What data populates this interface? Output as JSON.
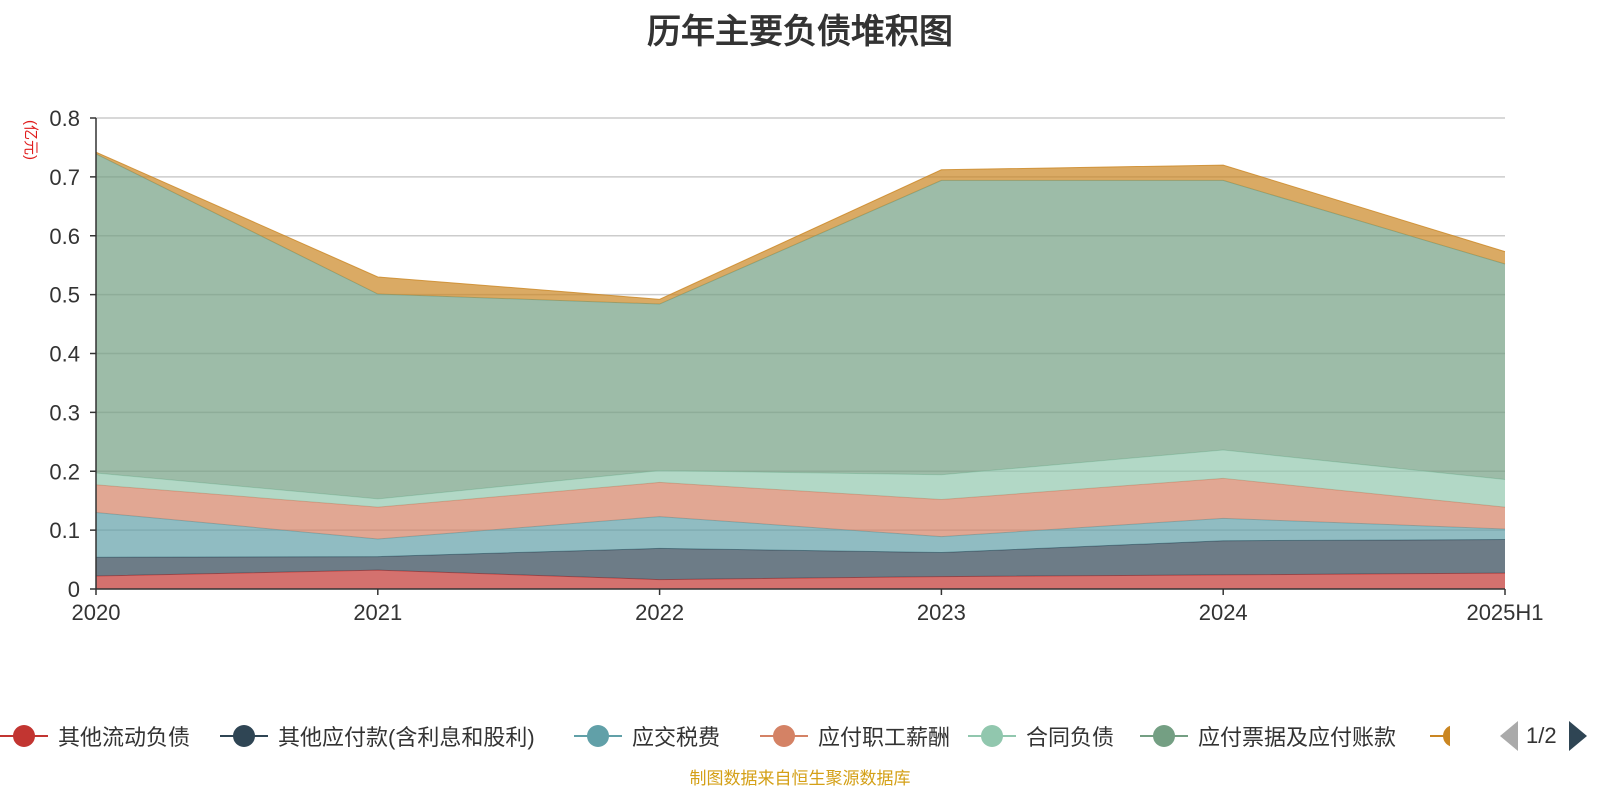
{
  "chart_data": {
    "type": "area",
    "stacked": true,
    "title": "历年主要负债堆积图",
    "unit_label": "(亿元)",
    "categories": [
      "2020",
      "2021",
      "2022",
      "2023",
      "2024",
      "2025H1"
    ],
    "ylim": [
      0,
      0.8
    ],
    "yticks": [
      "0",
      "0.1",
      "0.2",
      "0.3",
      "0.4",
      "0.5",
      "0.6",
      "0.7",
      "0.8"
    ],
    "grid": true,
    "legend_position": "bottom",
    "series": [
      {
        "name": "其他流动负债",
        "color": "#c23531",
        "values": [
          0.022,
          0.032,
          0.016,
          0.021,
          0.024,
          0.027
        ]
      },
      {
        "name": "其他应付款(含利息和股利)",
        "color": "#2f4554",
        "values": [
          0.032,
          0.023,
          0.053,
          0.041,
          0.058,
          0.057
        ]
      },
      {
        "name": "应交税费",
        "color": "#61a0a8",
        "values": [
          0.076,
          0.03,
          0.054,
          0.027,
          0.038,
          0.018
        ]
      },
      {
        "name": "应付职工薪酬",
        "color": "#d48265",
        "values": [
          0.047,
          0.054,
          0.058,
          0.063,
          0.068,
          0.037
        ]
      },
      {
        "name": "合同负债",
        "color": "#91c7ae",
        "values": [
          0.02,
          0.014,
          0.02,
          0.042,
          0.048,
          0.047
        ]
      },
      {
        "name": "应付票据及应付账款",
        "color": "#749f83",
        "values": [
          0.542,
          0.348,
          0.283,
          0.5,
          0.458,
          0.366
        ]
      },
      {
        "name": "",
        "color": "#ca8622",
        "values": [
          0.003,
          0.029,
          0.008,
          0.018,
          0.026,
          0.021
        ]
      }
    ]
  },
  "legend": {
    "page_text": "1/2"
  },
  "source_note": "制图数据来自恒生聚源数据库"
}
